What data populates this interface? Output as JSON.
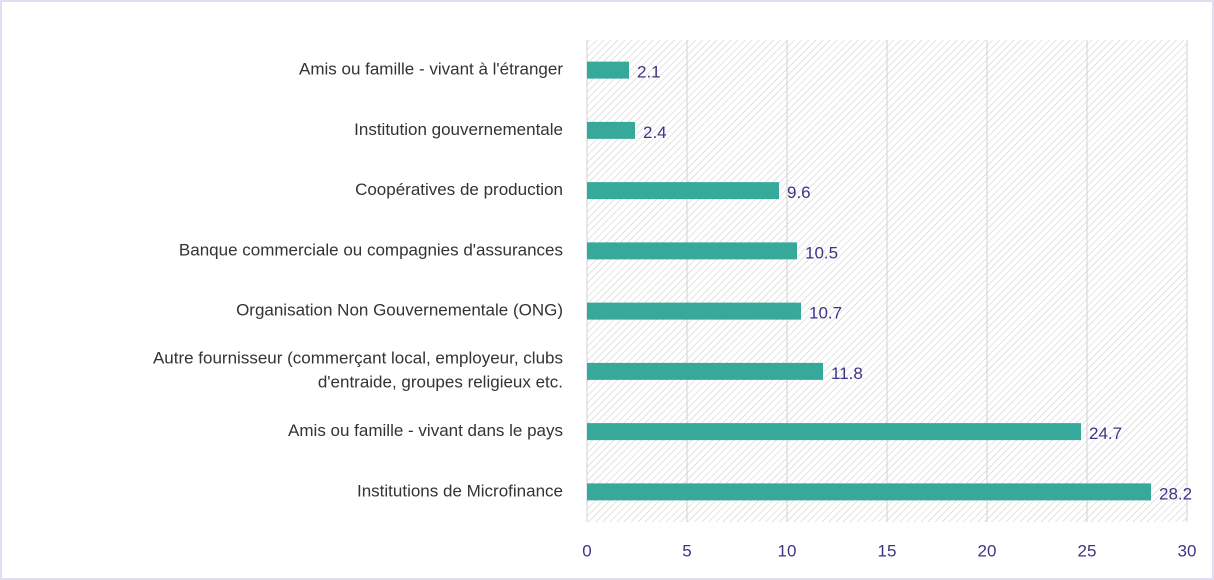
{
  "chart_data": {
    "type": "bar",
    "orientation": "horizontal",
    "categories": [
      "Amis ou famille - vivant à  l'étranger",
      "Institution gouvernementale",
      "Coopératives de production",
      "Banque commerciale ou compagnies d'assurances",
      "Organisation Non Gouvernementale (ONG)",
      "Autre fournisseur (commerçant local, employeur, clubs\nd'entraide, groupes religieux etc.",
      "Amis ou famille - vivant dans le pays",
      "Institutions de Microfinance"
    ],
    "values": [
      2.1,
      2.4,
      9.6,
      10.5,
      10.7,
      11.8,
      24.7,
      28.2
    ],
    "color": "#36a99a",
    "xlim": [
      0,
      30
    ],
    "xticks": [
      0,
      5,
      10,
      15,
      20,
      25,
      30
    ],
    "grid": true
  }
}
